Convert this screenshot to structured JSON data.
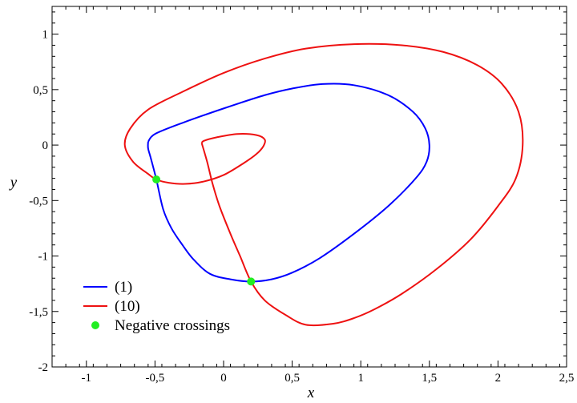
{
  "chart_data": {
    "type": "line",
    "xlabel": "x",
    "ylabel": "y",
    "xlim": [
      -1.25,
      2.5
    ],
    "ylim": [
      -2,
      1.25
    ],
    "x_ticks": [
      {
        "v": -1,
        "label": "-1"
      },
      {
        "v": -0.5,
        "label": "-0,5"
      },
      {
        "v": 0,
        "label": "0"
      },
      {
        "v": 0.5,
        "label": "0,5"
      },
      {
        "v": 1,
        "label": "1"
      },
      {
        "v": 1.5,
        "label": "1,5"
      },
      {
        "v": 2,
        "label": "2"
      },
      {
        "v": 2.5,
        "label": "2,5"
      }
    ],
    "y_ticks": [
      {
        "v": -2,
        "label": "-2"
      },
      {
        "v": -1.5,
        "label": "-1,5"
      },
      {
        "v": -1,
        "label": "-1"
      },
      {
        "v": -0.5,
        "label": "-0,5"
      },
      {
        "v": 0,
        "label": "0"
      },
      {
        "v": 0.5,
        "label": "0,5"
      },
      {
        "v": 1,
        "label": "1"
      }
    ],
    "legend_position": "bottom-left",
    "series": [
      {
        "name": "(1)",
        "color": "#0000ff",
        "points": [
          [
            -0.55,
            0.03
          ],
          [
            -0.5,
            0.1
          ],
          [
            -0.3,
            0.2
          ],
          [
            0,
            0.33
          ],
          [
            0.3,
            0.45
          ],
          [
            0.5,
            0.51
          ],
          [
            0.72,
            0.55
          ],
          [
            0.95,
            0.54
          ],
          [
            1.2,
            0.45
          ],
          [
            1.38,
            0.3
          ],
          [
            1.47,
            0.15
          ],
          [
            1.5,
            0.0
          ],
          [
            1.48,
            -0.15
          ],
          [
            1.4,
            -0.3
          ],
          [
            1.2,
            -0.55
          ],
          [
            0.95,
            -0.8
          ],
          [
            0.7,
            -1.02
          ],
          [
            0.5,
            -1.15
          ],
          [
            0.35,
            -1.21
          ],
          [
            0.2,
            -1.23
          ],
          [
            0.05,
            -1.21
          ],
          [
            -0.1,
            -1.16
          ],
          [
            -0.22,
            -1.03
          ],
          [
            -0.3,
            -0.9
          ],
          [
            -0.38,
            -0.75
          ],
          [
            -0.44,
            -0.58
          ],
          [
            -0.49,
            -0.31
          ],
          [
            -0.53,
            -0.12
          ],
          [
            -0.55,
            -0.03
          ],
          [
            -0.55,
            0.03
          ]
        ]
      },
      {
        "name": "(10)",
        "color": "#ee1111",
        "points": [
          [
            -0.16,
            0.02
          ],
          [
            -0.12,
            -0.15
          ],
          [
            -0.08,
            -0.35
          ],
          [
            -0.03,
            -0.55
          ],
          [
            0.05,
            -0.8
          ],
          [
            0.12,
            -1.0
          ],
          [
            0.2,
            -1.23
          ],
          [
            0.3,
            -1.4
          ],
          [
            0.45,
            -1.53
          ],
          [
            0.6,
            -1.62
          ],
          [
            0.8,
            -1.61
          ],
          [
            0.95,
            -1.56
          ],
          [
            1.1,
            -1.48
          ],
          [
            1.3,
            -1.34
          ],
          [
            1.55,
            -1.12
          ],
          [
            1.8,
            -0.85
          ],
          [
            2.0,
            -0.55
          ],
          [
            2.13,
            -0.3
          ],
          [
            2.18,
            0.0
          ],
          [
            2.15,
            0.3
          ],
          [
            2.03,
            0.55
          ],
          [
            1.85,
            0.72
          ],
          [
            1.6,
            0.84
          ],
          [
            1.3,
            0.9
          ],
          [
            0.95,
            0.91
          ],
          [
            0.6,
            0.87
          ],
          [
            0.3,
            0.78
          ],
          [
            0.0,
            0.65
          ],
          [
            -0.3,
            0.48
          ],
          [
            -0.55,
            0.32
          ],
          [
            -0.68,
            0.15
          ],
          [
            -0.72,
            0.0
          ],
          [
            -0.66,
            -0.15
          ],
          [
            -0.55,
            -0.26
          ],
          [
            -0.49,
            -0.31
          ],
          [
            -0.4,
            -0.34
          ],
          [
            -0.28,
            -0.35
          ],
          [
            -0.15,
            -0.33
          ],
          [
            0.0,
            -0.27
          ],
          [
            0.15,
            -0.16
          ],
          [
            0.24,
            -0.08
          ],
          [
            0.29,
            -0.01
          ],
          [
            0.3,
            0.05
          ],
          [
            0.24,
            0.09
          ],
          [
            0.1,
            0.1
          ],
          [
            -0.05,
            0.07
          ],
          [
            -0.14,
            0.04
          ],
          [
            -0.16,
            0.02
          ]
        ]
      }
    ],
    "markers": {
      "name": "Negative crossings",
      "color": "#22ee22",
      "points": [
        [
          -0.49,
          -0.31
        ],
        [
          0.2,
          -1.23
        ]
      ]
    }
  }
}
